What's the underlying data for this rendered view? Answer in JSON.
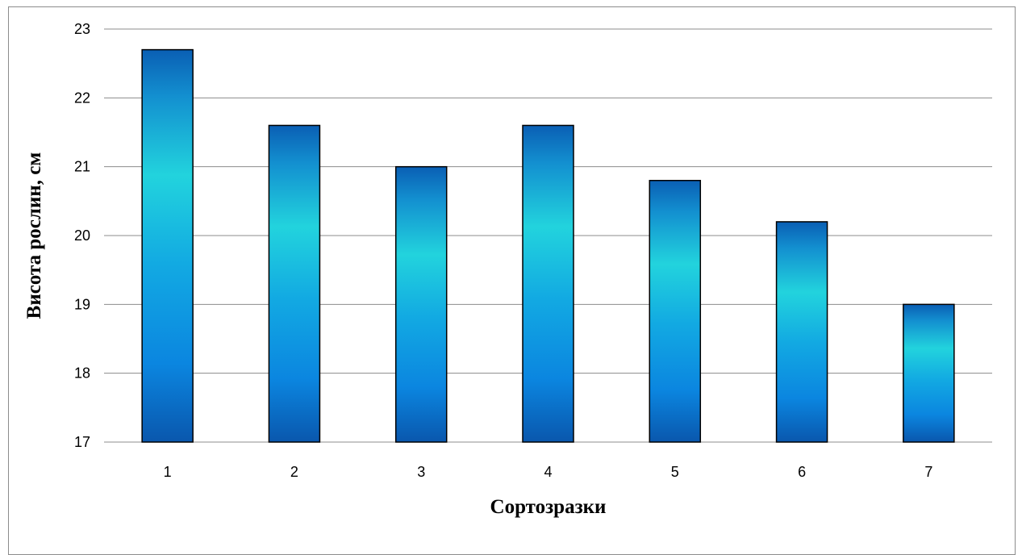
{
  "chart_data": {
    "type": "bar",
    "categories": [
      "1",
      "2",
      "3",
      "4",
      "5",
      "6",
      "7"
    ],
    "values": [
      22.7,
      21.6,
      21.0,
      21.6,
      20.8,
      20.2,
      19.0
    ],
    "title": "",
    "xlabel": "Сортозразки",
    "ylabel": "Висота рослин, см",
    "ylim": [
      17,
      23
    ],
    "yticks": [
      "17",
      "18",
      "19",
      "20",
      "21",
      "22",
      "23"
    ],
    "grid": true,
    "legend": "none",
    "colors": {
      "bar_dark": "#0a5fb4",
      "bar_mid": "#0b8ee0",
      "bar_light": "#22d3dd",
      "bar_outline": "#000000",
      "gridline": "#8c8c8c",
      "frame": "#8c8c8c"
    }
  }
}
